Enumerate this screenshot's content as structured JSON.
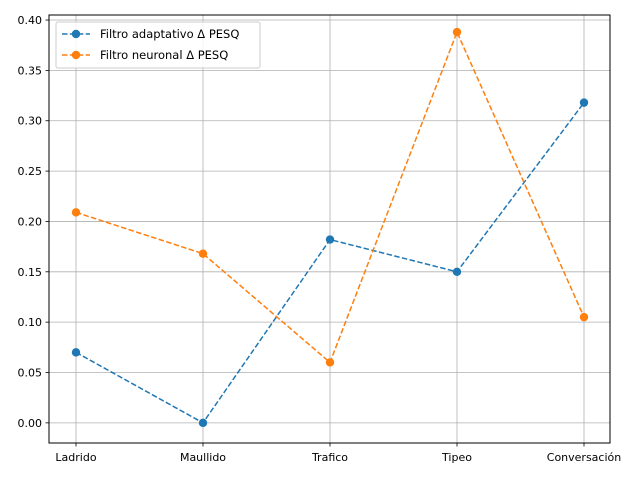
{
  "chart_data": {
    "type": "line",
    "categories": [
      "Ladrido",
      "Maullido",
      "Trafico",
      "Tipeo",
      "Conversación"
    ],
    "series": [
      {
        "name": "Filtro adaptativo Δ PESQ",
        "color": "#1f77b4",
        "line_style": "dashed",
        "marker": "circle",
        "values": [
          0.07,
          0.0,
          0.182,
          0.15,
          0.318
        ]
      },
      {
        "name": "Filtro neuronal Δ PESQ",
        "color": "#ff7f0e",
        "line_style": "dashed",
        "marker": "circle",
        "values": [
          0.209,
          0.168,
          0.06,
          0.388,
          0.105
        ]
      }
    ],
    "ylim": [
      -0.02,
      0.405
    ],
    "yticks": [
      0.0,
      0.05,
      0.1,
      0.15,
      0.2,
      0.25,
      0.3,
      0.35,
      0.4
    ],
    "ytick_labels": [
      "0.00",
      "0.05",
      "0.10",
      "0.15",
      "0.20",
      "0.25",
      "0.30",
      "0.35",
      "0.40"
    ],
    "grid": true,
    "legend_position": "top-left"
  }
}
